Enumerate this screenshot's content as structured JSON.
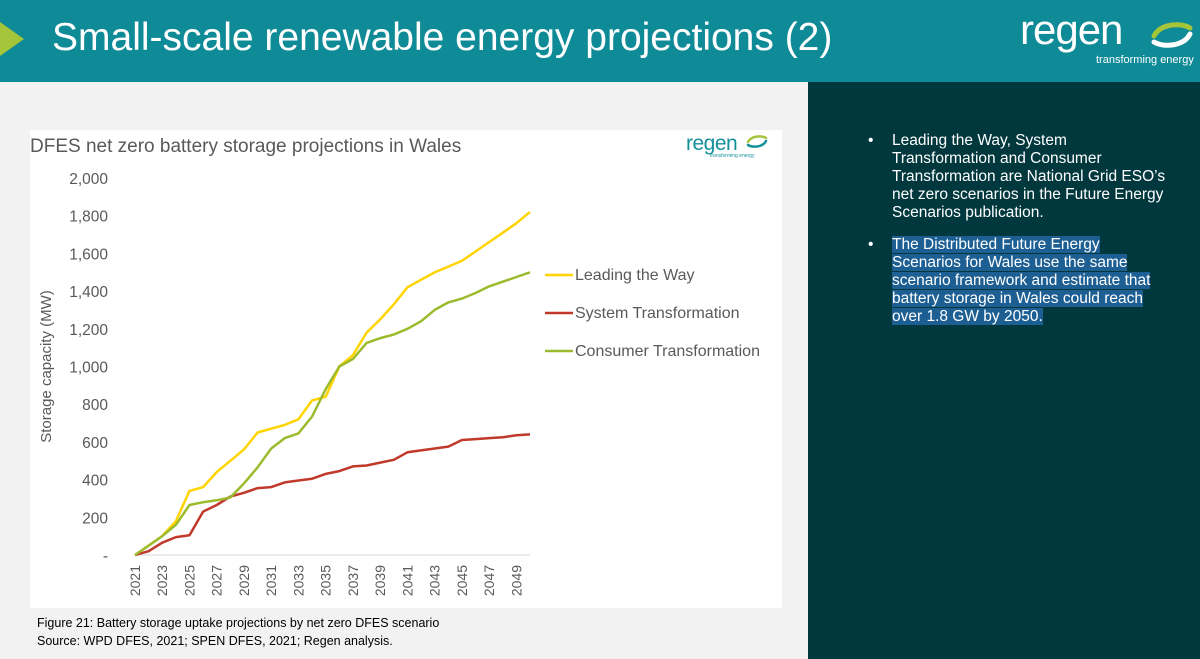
{
  "header": {
    "title": "Small-scale renewable energy projections (2)",
    "logo_word": "regen",
    "logo_tagline": "transforming energy"
  },
  "colors": {
    "header_bg": "#0f8a97",
    "accent_arrow": "#a4c43a",
    "right_panel_bg": "#00383e",
    "highlight": "#1d5f93"
  },
  "chart_logo": {
    "word": "regen",
    "tagline": "transforming energy"
  },
  "caption": {
    "line1": "Figure 21: Battery storage uptake projections by net zero DFES scenario",
    "line2": "Source: WPD DFES, 2021; SPEN DFES, 2021; Regen analysis."
  },
  "bullets": [
    {
      "text": "Leading the Way, System Transformation and Consumer Transformation are National Grid ESO’s net zero scenarios in the Future Energy Scenarios publication.",
      "highlighted": false
    },
    {
      "text": "The Distributed Future Energy Scenarios for Wales use the same scenario framework and estimate that battery storage in Wales could reach over 1.8 GW by 2050.",
      "highlighted": true
    }
  ],
  "chart_data": {
    "type": "line",
    "title": "DFES net zero battery storage projections in Wales",
    "ylabel": "Storage capacity (MW)",
    "xlabel": "",
    "ylim": [
      0,
      2000
    ],
    "yticks": [
      "-",
      "200",
      "400",
      "600",
      "800",
      "1,000",
      "1,200",
      "1,400",
      "1,600",
      "1,800",
      "2,000"
    ],
    "xtick_labels": [
      "2021",
      "2023",
      "2025",
      "2027",
      "2029",
      "2031",
      "2033",
      "2035",
      "2037",
      "2039",
      "2041",
      "2043",
      "2045",
      "2047",
      "2049"
    ],
    "grid": false,
    "legend": "right",
    "x": [
      2021,
      2022,
      2023,
      2024,
      2025,
      2026,
      2027,
      2028,
      2029,
      2030,
      2031,
      2032,
      2033,
      2034,
      2035,
      2036,
      2037,
      2038,
      2039,
      2040,
      2041,
      2042,
      2043,
      2044,
      2045,
      2046,
      2047,
      2048,
      2049,
      2050
    ],
    "series": [
      {
        "name": "Leading the Way",
        "color": "#ffd400",
        "values": [
          0,
          50,
          100,
          180,
          340,
          360,
          440,
          500,
          560,
          650,
          670,
          690,
          720,
          820,
          840,
          1000,
          1060,
          1180,
          1250,
          1330,
          1420,
          1460,
          1500,
          1530,
          1560,
          1610,
          1660,
          1710,
          1760,
          1820
        ]
      },
      {
        "name": "System Transformation",
        "color": "#c0392b",
        "values": [
          0,
          20,
          65,
          95,
          105,
          230,
          265,
          310,
          330,
          355,
          360,
          385,
          395,
          405,
          430,
          445,
          470,
          475,
          490,
          505,
          545,
          555,
          565,
          575,
          610,
          615,
          620,
          625,
          635,
          640
        ]
      },
      {
        "name": "Consumer Transformation",
        "color": "#9bbb2c",
        "values": [
          0,
          50,
          100,
          160,
          265,
          280,
          290,
          305,
          380,
          465,
          565,
          620,
          645,
          735,
          880,
          1000,
          1040,
          1125,
          1150,
          1170,
          1200,
          1240,
          1300,
          1340,
          1360,
          1390,
          1425,
          1450,
          1475,
          1500
        ]
      }
    ]
  }
}
